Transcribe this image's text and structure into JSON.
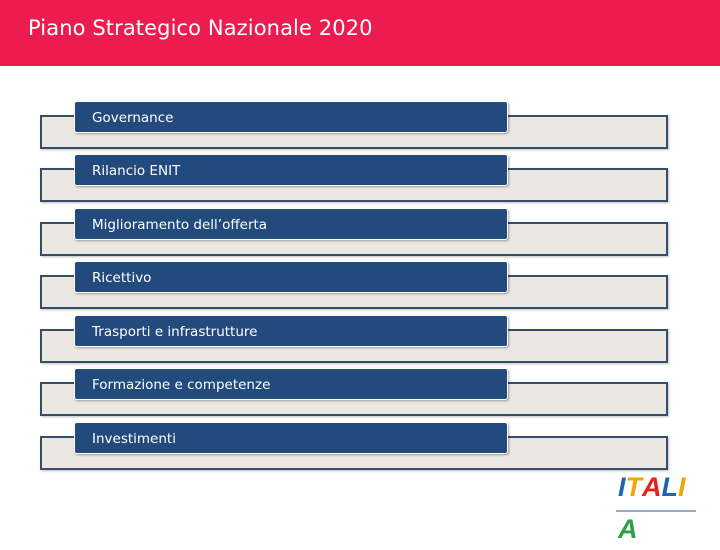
{
  "header": {
    "title": "Piano Strategico Nazionale 2020",
    "background": "#ec1c50"
  },
  "list": {
    "items": [
      {
        "label": "Governance"
      },
      {
        "label": "Rilancio ENIT"
      },
      {
        "label": "Miglioramento dell’offerta"
      },
      {
        "label": "Ricettivo"
      },
      {
        "label": "Trasporti e infrastrutture"
      },
      {
        "label": "Formazione e competenze"
      },
      {
        "label": "Investimenti"
      }
    ],
    "bar_color": "#234a7c",
    "track_color": "#ebe8e2"
  },
  "logo": {
    "text": "ITALIA",
    "letters": [
      "I",
      "T",
      "A",
      "L",
      "I",
      "A"
    ],
    "letter_colors": [
      "#1e64b4",
      "#f0a800",
      "#e2231a",
      "#1e64b4",
      "#f0a800",
      "#2ea043"
    ]
  }
}
